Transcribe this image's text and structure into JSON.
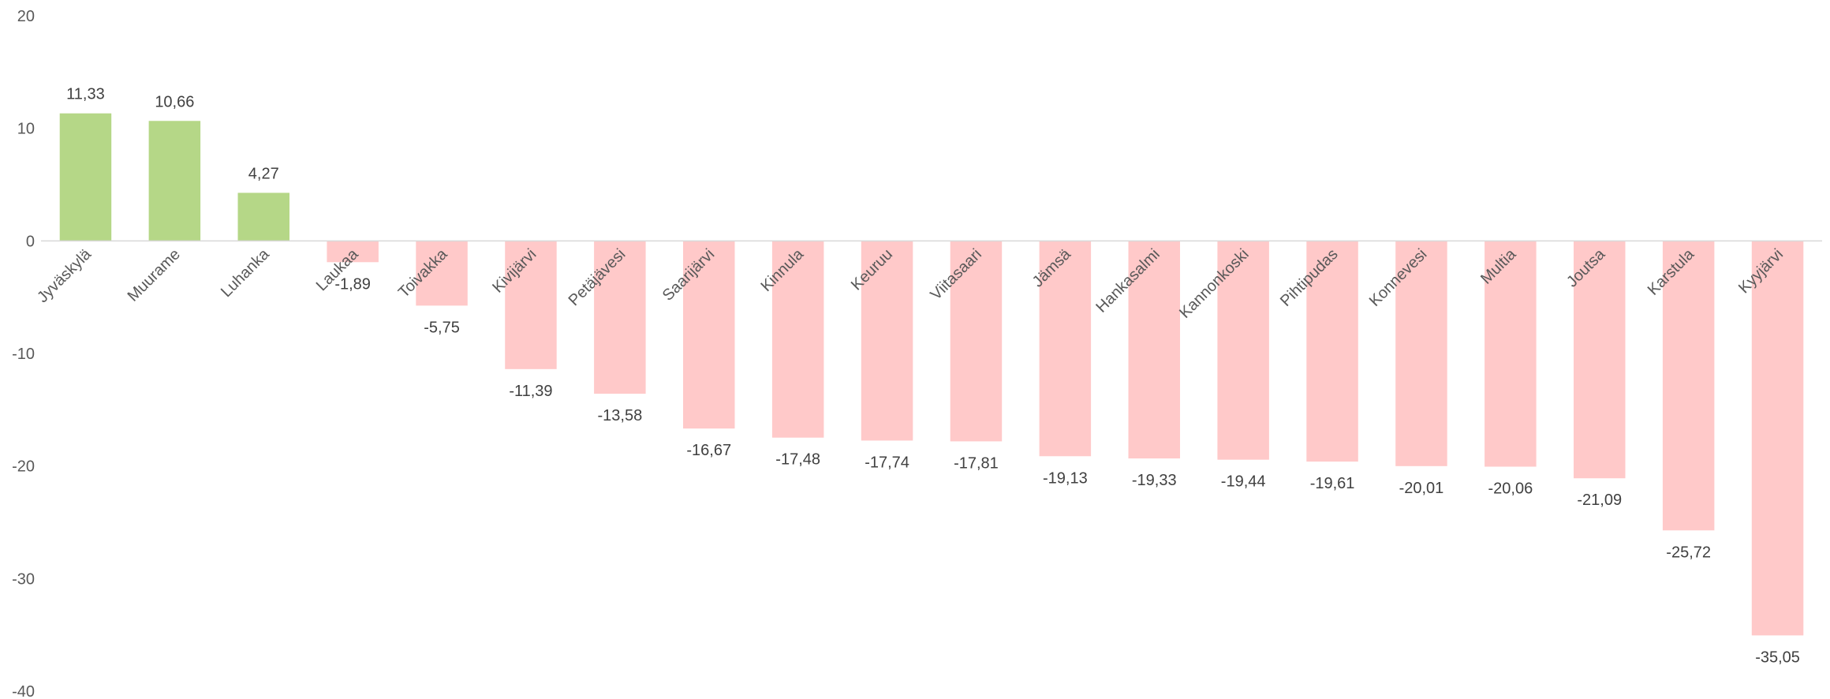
{
  "chart_data": {
    "type": "bar",
    "title": "",
    "xlabel": "",
    "ylabel": "",
    "ylim": [
      -40,
      20
    ],
    "y_ticks": [
      "20",
      "10",
      "0",
      "-10",
      "-20",
      "-30",
      "-40"
    ],
    "y_tick_values": [
      20,
      10,
      0,
      -10,
      -20,
      -30,
      -40
    ],
    "grid": false,
    "legend": "none",
    "colors": {
      "positive": "#b5d787",
      "negative": "#ffc9c9",
      "axis": "#d9d9d9"
    },
    "categories": [
      "Jyväskylä",
      "Muurame",
      "Luhanka",
      "Laukaa",
      "Toivakka",
      "Kivijärvi",
      "Petäjävesi",
      "Saarijärvi",
      "Kinnula",
      "Keuruu",
      "Viitasaari",
      "Jämsä",
      "Hankasalmi",
      "Kannonkoski",
      "Pihtipudas",
      "Konnevesi",
      "Multia",
      "Joutsa",
      "Karstula",
      "Kyyjärvi"
    ],
    "values": [
      11.33,
      10.66,
      4.27,
      -1.89,
      -5.75,
      -11.39,
      -13.58,
      -16.67,
      -17.48,
      -17.74,
      -17.81,
      -19.13,
      -19.33,
      -19.44,
      -19.61,
      -20.01,
      -20.06,
      -21.09,
      -25.72,
      -35.05
    ],
    "data_labels": [
      "11,33",
      "10,66",
      "4,27",
      "-1,89",
      "-5,75",
      "-11,39",
      "-13,58",
      "-16,67",
      "-17,48",
      "-17,74",
      "-17,81",
      "-19,13",
      "-19,33",
      "-19,44",
      "-19,61",
      "-20,01",
      "-20,06",
      "-21,09",
      "-25,72",
      "-35,05"
    ]
  }
}
